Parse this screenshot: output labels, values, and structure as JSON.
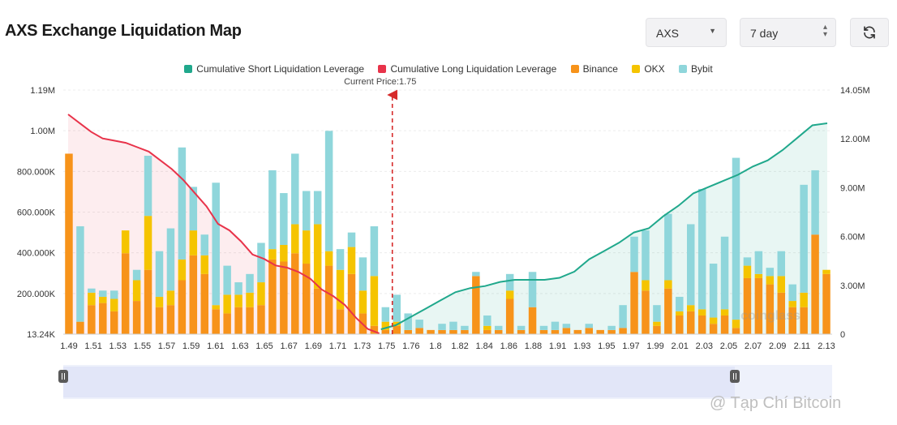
{
  "header": {
    "title": "AXS Exchange Liquidation Map",
    "coin_select": "AXS",
    "range_select": "7 day"
  },
  "legend": [
    {
      "label": "Cumulative Short Liquidation Leverage",
      "color": "#20a88c"
    },
    {
      "label": "Cumulative Long Liquidation Leverage",
      "color": "#e8334a"
    },
    {
      "label": "Binance",
      "color": "#f7931a"
    },
    {
      "label": "OKX",
      "color": "#f5c400"
    },
    {
      "label": "Bybit",
      "color": "#8fd6db"
    }
  ],
  "icons": {
    "refresh": "refresh-icon",
    "caret": "chevron-down-icon",
    "stepper": "up-down-icon"
  },
  "watermarks": {
    "coinglass": "coinglass",
    "source": "@ Tạp Chí Bitcoin"
  },
  "chart_data": {
    "type": "bar",
    "current_price_label": "Current Price:1.75",
    "current_price": 1.75,
    "x_tick_labels": [
      "1.49",
      "1.51",
      "1.53",
      "1.55",
      "1.57",
      "1.59",
      "1.61",
      "1.63",
      "1.65",
      "1.67",
      "1.69",
      "1.71",
      "1.73",
      "1.75",
      "1.76",
      "1.8",
      "1.82",
      "1.84",
      "1.86",
      "1.88",
      "1.91",
      "1.93",
      "1.95",
      "1.97",
      "1.99",
      "2.01",
      "2.03",
      "2.05",
      "2.07",
      "2.09",
      "2.11",
      "2.13"
    ],
    "y_left_ticks": [
      "13.24K",
      "200.000K",
      "400.000K",
      "600.000K",
      "800.000K",
      "1.00M",
      "1.19M"
    ],
    "y_right_ticks": [
      "0",
      "3.00M",
      "6.00M",
      "9.00M",
      "12.00M",
      "14.05M"
    ],
    "ylim_left": [
      13240,
      1190000
    ],
    "ylim_right": [
      0,
      14050000
    ],
    "series": [
      {
        "name": "Binance",
        "values": [
          870000,
          60000,
          140000,
          150000,
          110000,
          390000,
          160000,
          310000,
          130000,
          140000,
          260000,
          380000,
          290000,
          120000,
          100000,
          130000,
          130000,
          140000,
          360000,
          350000,
          390000,
          340000,
          220000,
          330000,
          120000,
          290000,
          100000,
          40000,
          20000,
          40000,
          20000,
          30000,
          20000,
          20000,
          20000,
          20000,
          280000,
          20000,
          20000,
          170000,
          20000,
          130000,
          20000,
          20000,
          30000,
          20000,
          30000,
          20000,
          20000,
          30000,
          300000,
          210000,
          40000,
          220000,
          90000,
          110000,
          90000,
          50000,
          90000,
          30000,
          270000,
          270000,
          240000,
          200000,
          130000,
          130000,
          480000,
          290000
        ]
      },
      {
        "name": "OKX",
        "values": [
          0,
          0,
          60000,
          30000,
          60000,
          110000,
          100000,
          260000,
          50000,
          70000,
          100000,
          120000,
          90000,
          20000,
          90000,
          60000,
          70000,
          110000,
          50000,
          80000,
          140000,
          160000,
          310000,
          70000,
          190000,
          130000,
          110000,
          240000,
          40000,
          20000,
          0,
          0,
          0,
          0,
          0,
          0,
          0,
          20000,
          0,
          40000,
          0,
          0,
          0,
          0,
          0,
          0,
          0,
          0,
          0,
          0,
          0,
          50000,
          20000,
          40000,
          20000,
          30000,
          30000,
          30000,
          30000,
          40000,
          60000,
          20000,
          40000,
          80000,
          30000,
          70000,
          0,
          20000
        ]
      },
      {
        "name": "Bybit",
        "values": [
          0,
          460000,
          20000,
          30000,
          40000,
          0,
          50000,
          290000,
          220000,
          300000,
          540000,
          210000,
          100000,
          590000,
          140000,
          60000,
          90000,
          190000,
          380000,
          250000,
          340000,
          190000,
          160000,
          580000,
          100000,
          70000,
          160000,
          240000,
          70000,
          130000,
          80000,
          40000,
          0,
          30000,
          40000,
          20000,
          20000,
          50000,
          20000,
          80000,
          20000,
          170000,
          20000,
          40000,
          20000,
          0,
          20000,
          0,
          20000,
          110000,
          170000,
          240000,
          80000,
          320000,
          70000,
          390000,
          580000,
          260000,
          350000,
          780000,
          40000,
          110000,
          40000,
          120000,
          80000,
          520000,
          310000,
          0
        ]
      }
    ],
    "cumulative_long": [
      1.0,
      0.96,
      0.92,
      0.89,
      0.88,
      0.87,
      0.85,
      0.83,
      0.79,
      0.75,
      0.7,
      0.64,
      0.58,
      0.5,
      0.47,
      0.42,
      0.36,
      0.34,
      0.31,
      0.3,
      0.28,
      0.25,
      0.2,
      0.17,
      0.13,
      0.07,
      0.02,
      0.0
    ],
    "cumulative_short": [
      0.0,
      0.02,
      0.06,
      0.1,
      0.14,
      0.18,
      0.2,
      0.21,
      0.23,
      0.24,
      0.24,
      0.24,
      0.25,
      0.28,
      0.34,
      0.38,
      0.42,
      0.47,
      0.49,
      0.55,
      0.6,
      0.66,
      0.69,
      0.72,
      0.75,
      0.79,
      0.82,
      0.87,
      0.93,
      0.99,
      1.0
    ]
  }
}
